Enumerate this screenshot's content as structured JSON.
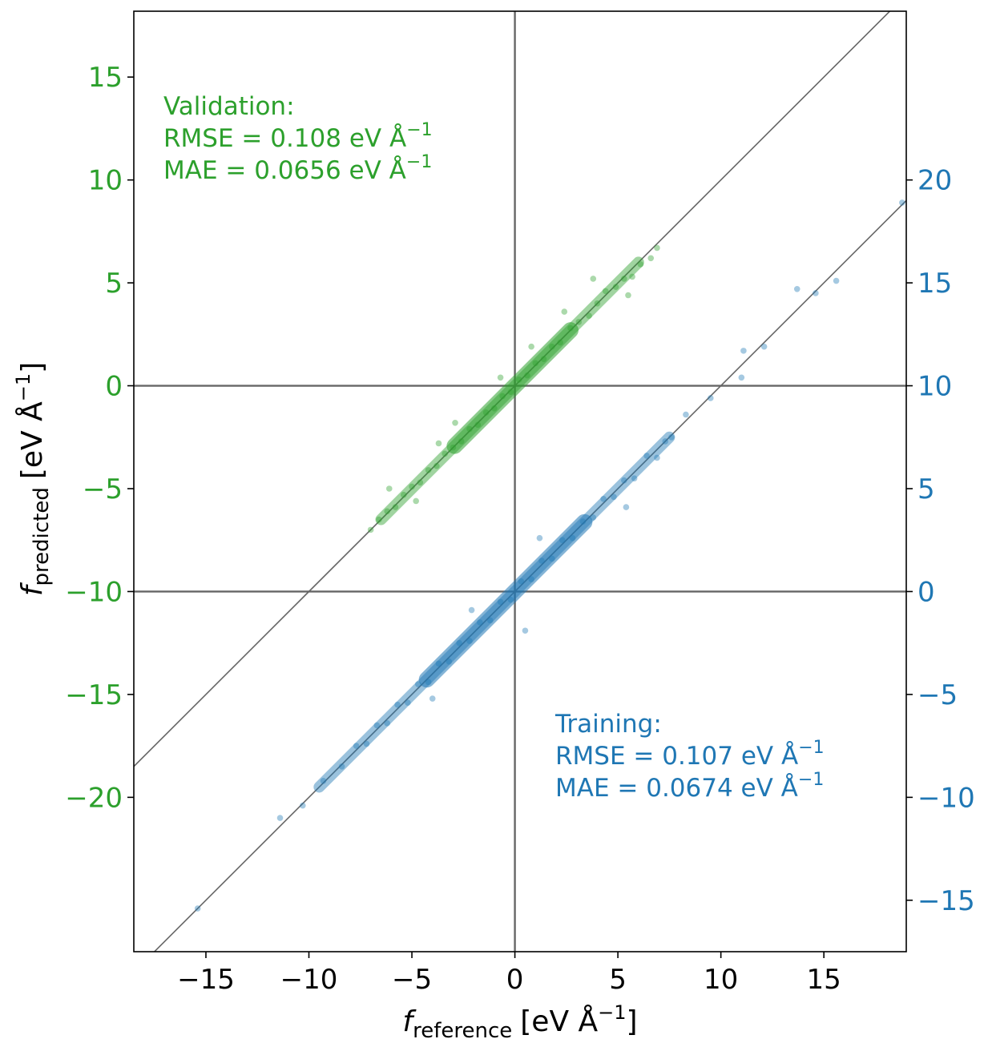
{
  "chart_data": {
    "type": "scatter",
    "xlabel": {
      "main": "f",
      "sub": "reference",
      "unit": "[eV Å",
      "exp": "−1",
      "close": "]"
    },
    "ylabel": {
      "main": "f",
      "sub": "predicted",
      "unit": "[eV Å",
      "exp": "−1",
      "close": "]"
    },
    "xlim": [
      -18.5,
      19
    ],
    "ylim_left": [
      -27.5,
      18.2
    ],
    "ylim_right": [
      -17.5,
      28.2
    ],
    "x_ticks": [
      -15,
      -10,
      -5,
      0,
      5,
      10,
      15
    ],
    "x_tick_labels": [
      "−15",
      "−10",
      "−5",
      "0",
      "5",
      "10",
      "15"
    ],
    "y_left_ticks": [
      -20,
      -15,
      -10,
      -5,
      0,
      5,
      10,
      15
    ],
    "y_left_tick_labels": [
      "−20",
      "−15",
      "−10",
      "−5",
      "0",
      "5",
      "10",
      "15"
    ],
    "y_right_ticks": [
      -15,
      -10,
      -5,
      0,
      5,
      10,
      15,
      20
    ],
    "y_right_tick_labels": [
      "−15",
      "−10",
      "−5",
      "0",
      "5",
      "10",
      "15",
      "20"
    ],
    "colors": {
      "validation": "#2ca02c",
      "training": "#1f77b4",
      "refline": "#666666"
    },
    "series": [
      {
        "name": "Validation",
        "axis": "left",
        "color": "#2ca02c",
        "x": [
          6.9,
          6.6,
          6.1,
          5.7,
          5.3,
          4.9,
          4.4,
          4.0,
          3.6,
          3.1,
          2.7,
          2.2,
          1.8,
          1.4,
          1.0,
          0.6,
          0.2,
          -0.2,
          -0.6,
          -1.0,
          -1.4,
          -1.8,
          -2.2,
          -2.6,
          -3.0,
          -3.4,
          -3.8,
          -4.2,
          -4.6,
          -5.0,
          -5.4,
          -5.8,
          -6.2,
          -6.6,
          -7.0,
          -0.7,
          -2.9,
          0.8,
          3.8,
          5.5,
          2.4,
          -3.7,
          -6.1,
          -4.8
        ],
        "y": [
          6.7,
          6.2,
          5.9,
          5.3,
          5.2,
          4.8,
          4.6,
          4.0,
          3.4,
          3.1,
          2.8,
          2.1,
          1.9,
          1.3,
          1.1,
          0.5,
          0.3,
          -0.3,
          -0.5,
          -1.1,
          -1.3,
          -1.9,
          -2.1,
          -2.7,
          -3.0,
          -3.3,
          -3.9,
          -4.1,
          -4.7,
          -4.9,
          -5.3,
          -5.9,
          -6.1,
          -6.5,
          -7.0,
          0.4,
          -1.8,
          1.9,
          5.2,
          4.4,
          3.6,
          -2.8,
          -5.0,
          -5.6
        ]
      },
      {
        "name": "Training",
        "axis": "right",
        "color": "#1f77b4",
        "x": [
          18.8,
          15.6,
          14.6,
          13.7,
          12.1,
          11.1,
          11.0,
          9.5,
          8.3,
          7.6,
          7.3,
          6.9,
          6.4,
          5.8,
          5.3,
          4.8,
          4.3,
          3.8,
          3.3,
          2.8,
          2.3,
          1.8,
          1.3,
          0.8,
          0.3,
          -0.2,
          -0.7,
          -1.2,
          -1.7,
          -2.2,
          -2.7,
          -3.2,
          -3.7,
          -4.2,
          -4.7,
          -5.2,
          -5.7,
          -6.2,
          -6.7,
          -7.2,
          -7.7,
          -8.4,
          -9.3,
          -10.3,
          -11.4,
          -15.4,
          0.5,
          -2.1,
          5.4,
          1.2,
          -4.0
        ],
        "y": [
          18.9,
          15.1,
          14.5,
          14.7,
          11.9,
          11.7,
          10.4,
          9.4,
          8.6,
          7.5,
          7.3,
          6.5,
          6.6,
          5.5,
          5.4,
          4.6,
          4.5,
          3.6,
          3.4,
          2.6,
          2.5,
          1.6,
          1.5,
          0.6,
          0.5,
          -0.4,
          -0.5,
          -1.4,
          -1.5,
          -2.4,
          -2.5,
          -3.4,
          -3.5,
          -4.4,
          -4.5,
          -5.4,
          -5.5,
          -6.4,
          -6.5,
          -7.4,
          -7.5,
          -8.5,
          -9.2,
          -10.4,
          -11.0,
          -15.4,
          -1.9,
          -0.9,
          4.1,
          2.6,
          -5.2
        ]
      }
    ],
    "annotations": [
      {
        "name": "validation",
        "color": "#2ca02c",
        "lines": [
          "Validation:",
          "RMSE = 0.108 eV Å−1",
          "MAE = 0.0656 eV Å−1"
        ]
      },
      {
        "name": "training",
        "color": "#1f77b4",
        "lines": [
          "Training:",
          "RMSE = 0.107 eV Å−1",
          "MAE = 0.0674 eV Å−1"
        ]
      }
    ]
  },
  "text": {
    "val_title": "Validation:",
    "val_rmse": "RMSE = 0.108 eV Å",
    "val_mae": "MAE = 0.0656 eV Å",
    "train_title": "Training:",
    "train_rmse": "RMSE = 0.107 eV Å",
    "train_mae": "MAE = 0.0674 eV Å",
    "exp": "−1"
  }
}
